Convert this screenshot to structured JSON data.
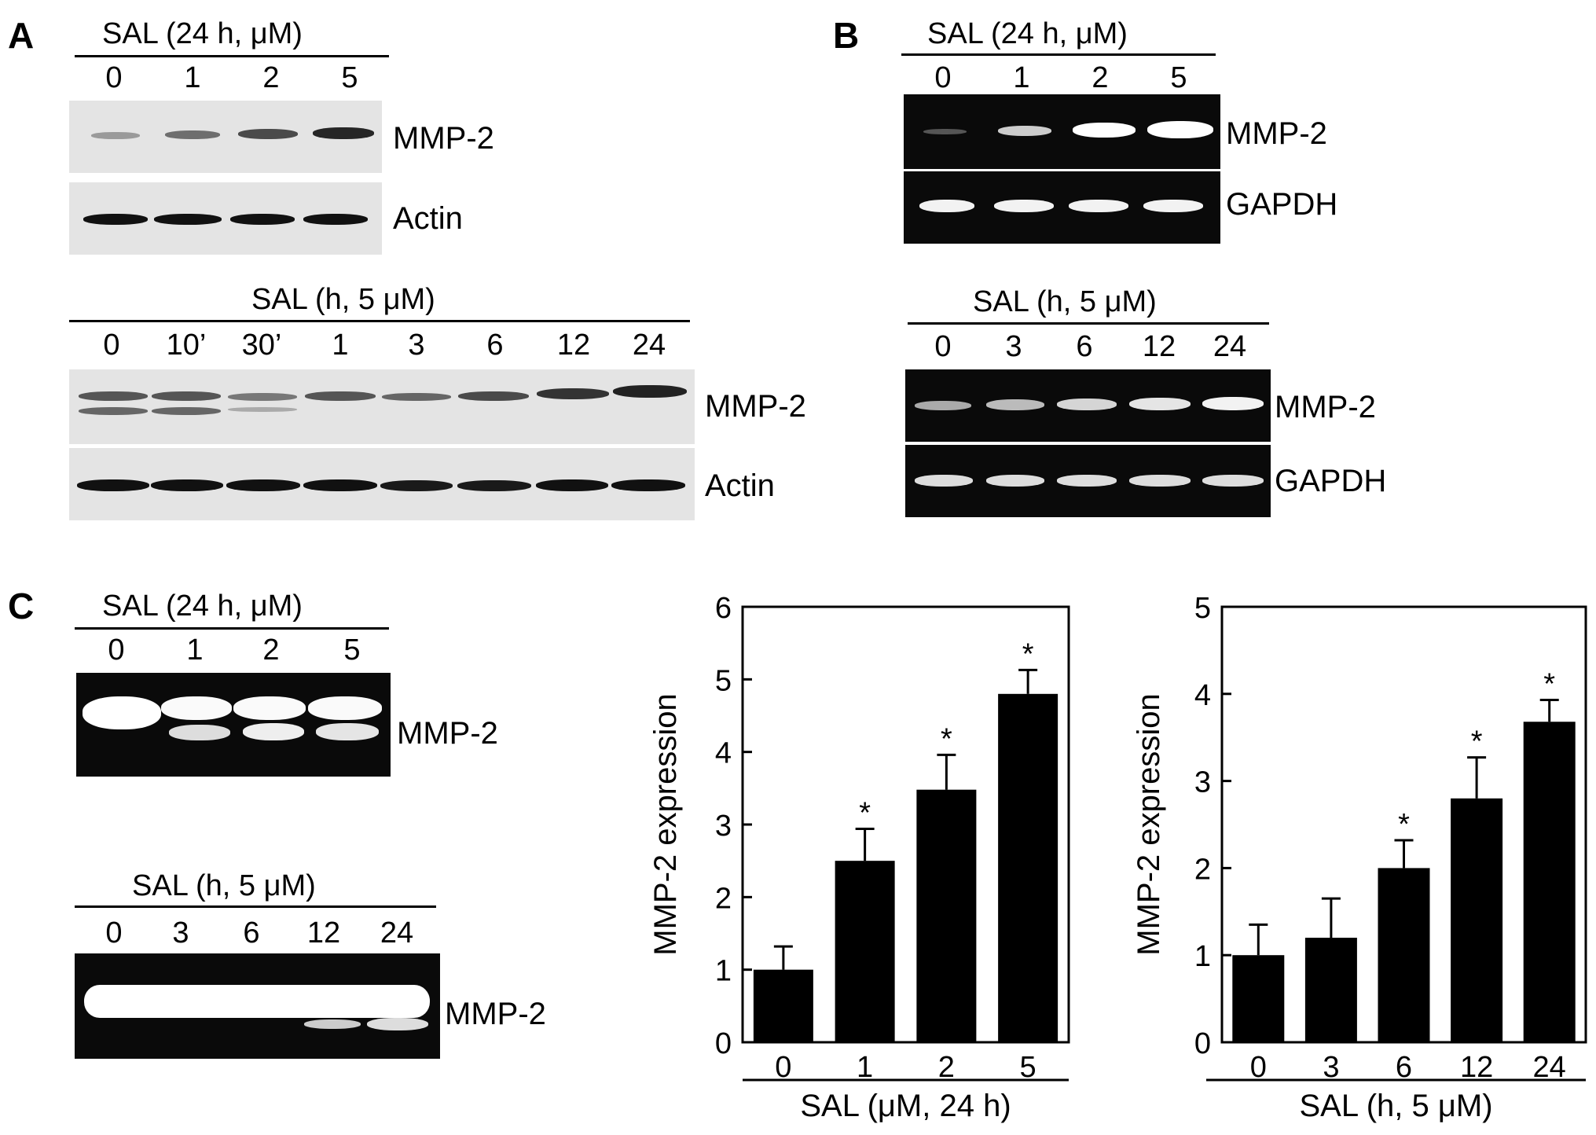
{
  "panels": {
    "A": {
      "letter": "A",
      "top": {
        "header": "SAL  (24 h, μM)",
        "lanes": [
          "0",
          "1",
          "2",
          "5"
        ],
        "bands": [
          "MMP-2",
          "Actin"
        ]
      },
      "bottom": {
        "header": "SAL   (h, 5 μM)",
        "lanes": [
          "0",
          "10’",
          "30’",
          "1",
          "3",
          "6",
          "12",
          "24"
        ],
        "bands": [
          "MMP-2",
          "Actin"
        ]
      }
    },
    "B": {
      "letter": "B",
      "top": {
        "header": "SAL  (24 h, μM)",
        "lanes": [
          "0",
          "1",
          "2",
          "5"
        ],
        "bands": [
          "MMP-2",
          "GAPDH"
        ]
      },
      "bottom": {
        "header": "SAL (h, 5 μM)",
        "lanes": [
          "0",
          "3",
          "6",
          "12",
          "24"
        ],
        "bands": [
          "MMP-2",
          "GAPDH"
        ]
      }
    },
    "C": {
      "letter": "C",
      "top": {
        "header": "SAL  (24 h, μM)",
        "lanes": [
          "0",
          "1",
          "2",
          "5"
        ],
        "bands": [
          "MMP-2"
        ]
      },
      "bottom": {
        "header": "SAL (h, 5 μM)",
        "lanes": [
          "0",
          "3",
          "6",
          "12",
          "24"
        ],
        "bands": [
          "MMP-2"
        ]
      }
    }
  },
  "chart_data": [
    {
      "type": "bar",
      "categories": [
        "0",
        "1",
        "2",
        "5"
      ],
      "values": [
        1.0,
        2.5,
        3.48,
        4.8
      ],
      "errors": [
        0.32,
        0.44,
        0.48,
        0.33
      ],
      "significance": [
        "",
        "*",
        "*",
        "*"
      ],
      "ylabel": "MMP-2 expression",
      "xlabel": "SAL (μM, 24 h)",
      "ylim": [
        0,
        6
      ],
      "yticks": [
        "0",
        "1",
        "2",
        "3",
        "4",
        "5",
        "6"
      ],
      "bar_color": "#000000"
    },
    {
      "type": "bar",
      "categories": [
        "0",
        "3",
        "6",
        "12",
        "24"
      ],
      "values": [
        1.0,
        1.2,
        2.0,
        2.8,
        3.68
      ],
      "errors": [
        0.35,
        0.45,
        0.32,
        0.47,
        0.25
      ],
      "significance": [
        "",
        "",
        "*",
        "*",
        "*"
      ],
      "ylabel": "MMP-2 expression",
      "xlabel": "SAL (h, 5 μM)",
      "ylim": [
        0,
        5
      ],
      "yticks": [
        "0",
        "1",
        "2",
        "3",
        "4",
        "5"
      ],
      "bar_color": "#000000"
    }
  ]
}
